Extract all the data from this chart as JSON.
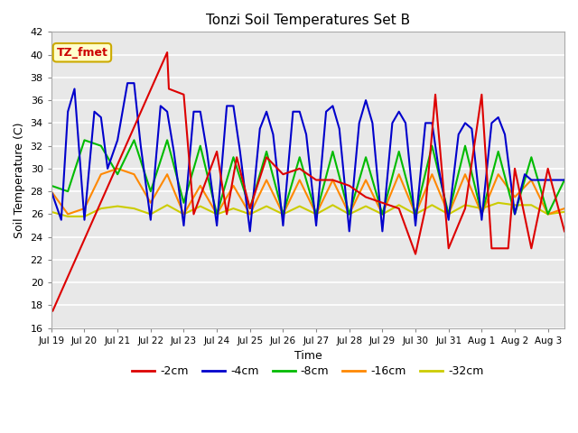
{
  "title": "Tonzi Soil Temperatures Set B",
  "xlabel": "Time",
  "ylabel": "Soil Temperature (C)",
  "ylim": [
    16,
    42
  ],
  "yticks": [
    16,
    18,
    20,
    22,
    24,
    26,
    28,
    30,
    32,
    34,
    36,
    38,
    40,
    42
  ],
  "bg_color": "#ffffff",
  "plot_bg": "#e8e8e8",
  "annotation_label": "TZ_fmet",
  "annotation_color": "#cc0000",
  "annotation_bg": "#ffffcc",
  "annotation_border": "#ccaa00",
  "series": {
    "m2cm": {
      "label": "-2cm",
      "color": "#dd0000",
      "lw": 1.5
    },
    "m4cm": {
      "label": "-4cm",
      "color": "#0000cc",
      "lw": 1.5
    },
    "m8cm": {
      "label": "-8cm",
      "color": "#00bb00",
      "lw": 1.5
    },
    "m16cm": {
      "label": "-16cm",
      "color": "#ff8800",
      "lw": 1.5
    },
    "m32cm": {
      "label": "-32cm",
      "color": "#cccc00",
      "lw": 1.5
    }
  },
  "x_2cm": [
    0,
    0.04,
    3.5,
    3.55,
    4.0,
    4.3,
    5.0,
    5.3,
    5.6,
    6.0,
    6.5,
    7.0,
    7.5,
    8.0,
    8.5,
    9.0,
    9.5,
    10.0,
    10.5,
    11.0,
    11.3,
    11.6,
    12.0,
    12.5,
    13.0,
    13.3,
    13.8,
    14.0,
    14.5,
    15.0,
    15.5
  ],
  "y_2cm": [
    17.5,
    17.5,
    40.2,
    37.0,
    36.5,
    26.0,
    31.5,
    26.0,
    31.0,
    26.5,
    31.0,
    29.5,
    30.0,
    29.0,
    29.0,
    28.5,
    27.5,
    27.0,
    26.5,
    22.5,
    26.5,
    36.5,
    23.0,
    26.5,
    36.5,
    23.0,
    23.0,
    30.0,
    23.0,
    30.0,
    24.5
  ],
  "x_4cm": [
    0,
    0.3,
    0.5,
    0.7,
    1.0,
    1.3,
    1.5,
    1.7,
    2.0,
    2.3,
    2.5,
    2.7,
    3.0,
    3.3,
    3.5,
    3.7,
    4.0,
    4.3,
    4.5,
    4.7,
    5.0,
    5.3,
    5.5,
    5.7,
    6.0,
    6.3,
    6.5,
    6.7,
    7.0,
    7.3,
    7.5,
    7.7,
    8.0,
    8.3,
    8.5,
    8.7,
    9.0,
    9.3,
    9.5,
    9.7,
    10.0,
    10.3,
    10.5,
    10.7,
    11.0,
    11.3,
    11.5,
    11.7,
    12.0,
    12.3,
    12.5,
    12.7,
    13.0,
    13.3,
    13.5,
    13.7,
    14.0,
    14.3,
    14.5,
    14.7,
    15.0,
    15.3,
    15.5
  ],
  "y_4cm": [
    28.0,
    25.5,
    35.0,
    37.0,
    25.5,
    35.0,
    34.5,
    30.0,
    32.5,
    37.5,
    37.5,
    32.0,
    25.5,
    35.5,
    35.0,
    31.5,
    25.0,
    35.0,
    35.0,
    31.5,
    25.0,
    35.5,
    35.5,
    31.5,
    24.5,
    33.5,
    35.0,
    33.0,
    25.0,
    35.0,
    35.0,
    33.0,
    25.0,
    35.0,
    35.5,
    33.5,
    24.5,
    34.0,
    36.0,
    34.0,
    24.5,
    34.0,
    35.0,
    34.0,
    25.0,
    34.0,
    34.0,
    30.0,
    25.5,
    33.0,
    34.0,
    33.5,
    25.5,
    34.0,
    34.5,
    33.0,
    26.0,
    29.5,
    29.0,
    29.0,
    29.0,
    29.0,
    29.0
  ],
  "x_8cm": [
    0,
    0.5,
    1.0,
    1.5,
    2.0,
    2.5,
    3.0,
    3.5,
    4.0,
    4.5,
    5.0,
    5.5,
    6.0,
    6.5,
    7.0,
    7.5,
    8.0,
    8.5,
    9.0,
    9.5,
    10.0,
    10.5,
    11.0,
    11.5,
    12.0,
    12.5,
    13.0,
    13.5,
    14.0,
    14.5,
    15.0,
    15.5
  ],
  "y_8cm": [
    28.5,
    28.0,
    32.5,
    32.0,
    29.5,
    32.5,
    28.0,
    32.5,
    27.0,
    32.0,
    26.0,
    31.0,
    26.5,
    31.5,
    26.0,
    31.0,
    26.0,
    31.5,
    26.0,
    31.0,
    26.0,
    31.5,
    26.0,
    32.0,
    26.0,
    32.0,
    26.0,
    31.5,
    26.0,
    31.0,
    26.0,
    29.0
  ],
  "x_16cm": [
    0,
    0.5,
    1.0,
    1.5,
    2.0,
    2.5,
    3.0,
    3.5,
    4.0,
    4.5,
    5.0,
    5.5,
    6.0,
    6.5,
    7.0,
    7.5,
    8.0,
    8.5,
    9.0,
    9.5,
    10.0,
    10.5,
    11.0,
    11.5,
    12.0,
    12.5,
    13.0,
    13.5,
    14.0,
    14.5,
    15.0,
    15.5
  ],
  "y_16cm": [
    28.0,
    26.0,
    26.5,
    29.5,
    30.0,
    29.5,
    27.0,
    29.5,
    26.0,
    28.5,
    26.0,
    28.5,
    26.0,
    29.0,
    26.0,
    29.0,
    26.0,
    29.0,
    26.0,
    29.0,
    26.0,
    29.5,
    26.0,
    29.5,
    26.0,
    29.5,
    26.0,
    29.5,
    27.5,
    29.0,
    26.0,
    26.5
  ],
  "x_32cm": [
    0,
    0.5,
    1.0,
    1.5,
    2.0,
    2.5,
    3.0,
    3.5,
    4.0,
    4.5,
    5.0,
    5.5,
    6.0,
    6.5,
    7.0,
    7.5,
    8.0,
    8.5,
    9.0,
    9.5,
    10.0,
    10.5,
    11.0,
    11.5,
    12.0,
    12.5,
    13.0,
    13.5,
    14.0,
    14.5,
    15.0,
    15.5
  ],
  "y_32cm": [
    26.2,
    25.8,
    25.8,
    26.5,
    26.7,
    26.5,
    26.0,
    26.8,
    26.0,
    26.7,
    26.0,
    26.5,
    26.0,
    26.7,
    26.0,
    26.7,
    26.0,
    26.8,
    26.0,
    26.7,
    26.0,
    26.8,
    26.0,
    26.8,
    26.0,
    26.8,
    26.5,
    27.0,
    26.8,
    26.8,
    26.0,
    26.2
  ],
  "tick_labels": [
    "Jul 19",
    "Jul 20",
    "Jul 21",
    "Jul 22",
    "Jul 23",
    "Jul 24",
    "Jul 25",
    "Jul 26",
    "Jul 27",
    "Jul 28",
    "Jul 29",
    "Jul 30",
    "Jul 31",
    "Aug 1",
    "Aug 2",
    "Aug 3"
  ]
}
